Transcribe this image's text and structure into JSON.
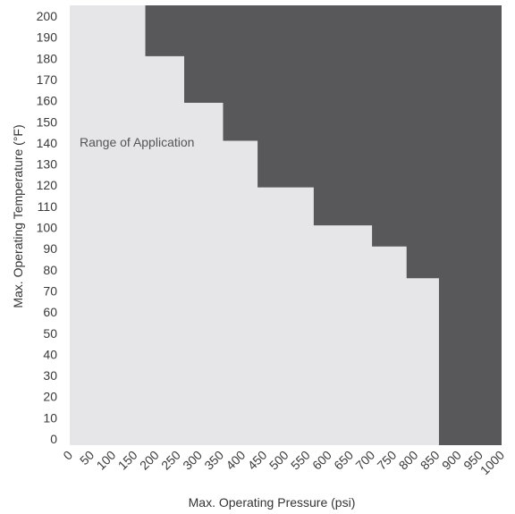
{
  "chart_data": {
    "type": "area",
    "xlabel": "Max. Operating Pressure (psi)",
    "ylabel": "Max. Operating Temperature (°F)",
    "xlim": [
      0,
      1000
    ],
    "ylim": [
      0,
      200
    ],
    "x_ticks": [
      0,
      50,
      100,
      150,
      200,
      250,
      300,
      350,
      400,
      450,
      500,
      550,
      600,
      650,
      700,
      750,
      800,
      850,
      900,
      950,
      1000
    ],
    "y_ticks": [
      0,
      10,
      20,
      30,
      40,
      50,
      60,
      70,
      80,
      90,
      100,
      110,
      120,
      130,
      140,
      150,
      160,
      170,
      180,
      190,
      200
    ],
    "region_label": "Range of Application",
    "boundary": [
      {
        "x": 175,
        "y": 200
      },
      {
        "x": 175,
        "y": 181
      },
      {
        "x": 265,
        "y": 181
      },
      {
        "x": 265,
        "y": 159
      },
      {
        "x": 355,
        "y": 159
      },
      {
        "x": 355,
        "y": 141
      },
      {
        "x": 435,
        "y": 141
      },
      {
        "x": 435,
        "y": 119
      },
      {
        "x": 565,
        "y": 119
      },
      {
        "x": 565,
        "y": 101
      },
      {
        "x": 700,
        "y": 101
      },
      {
        "x": 700,
        "y": 91
      },
      {
        "x": 780,
        "y": 91
      },
      {
        "x": 780,
        "y": 76
      },
      {
        "x": 855,
        "y": 76
      },
      {
        "x": 855,
        "y": 0
      }
    ],
    "colors": {
      "range": "#e6e6e8",
      "outside": "#58585a"
    },
    "grid": false,
    "legend": "none"
  }
}
